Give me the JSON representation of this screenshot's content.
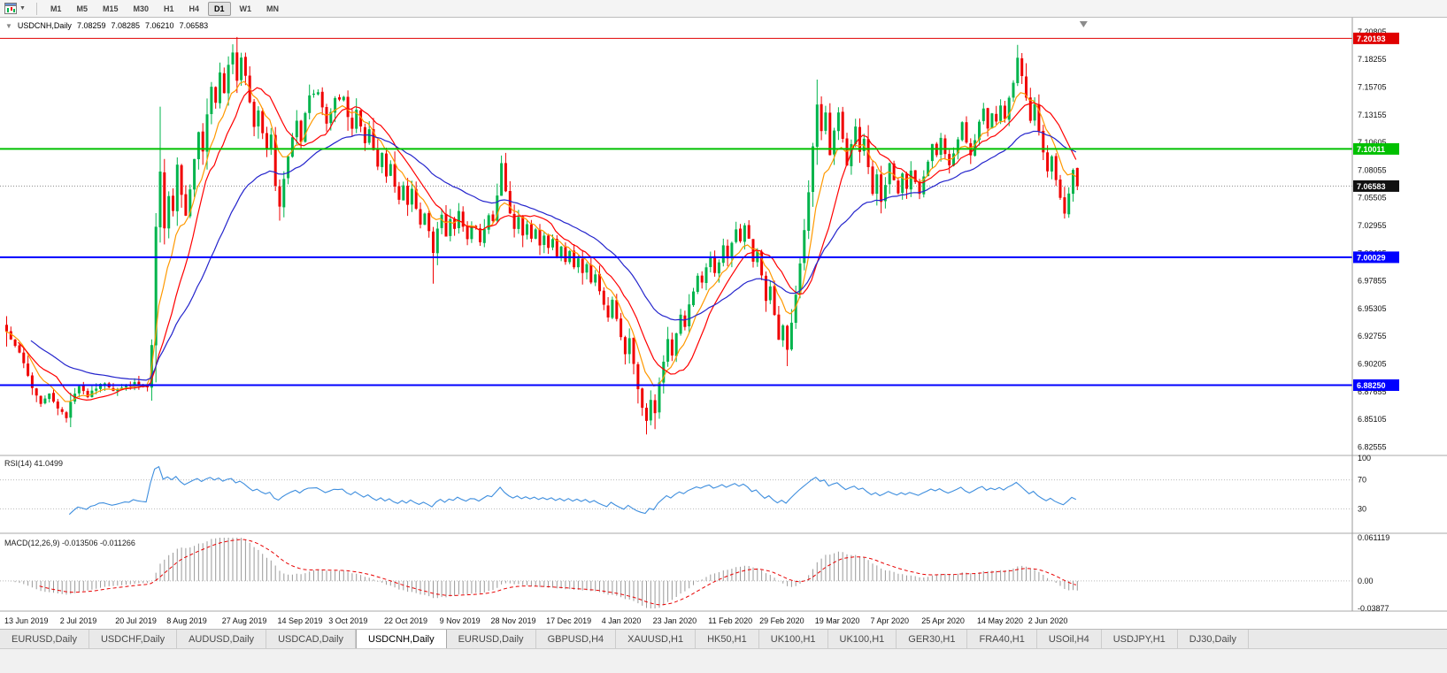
{
  "toolbar": {
    "timeframes": [
      "M1",
      "M5",
      "M15",
      "M30",
      "H1",
      "H4",
      "D1",
      "W1",
      "MN"
    ],
    "active_timeframe": "D1"
  },
  "chart": {
    "title": "USDCNH,Daily",
    "ohlc": {
      "open": "7.08259",
      "high": "7.08285",
      "low": "7.06210",
      "close": "7.06583"
    }
  },
  "indicators": {
    "rsi": {
      "label": "RSI(14) 41.0499",
      "scale_labels": [
        "100",
        "70",
        "30"
      ],
      "levels": [
        70,
        30
      ]
    },
    "macd": {
      "label": "MACD(12,26,9) -0.013506 -0.011266",
      "scale_labels": [
        "0.061119",
        "0.00",
        "-0.03877"
      ]
    }
  },
  "price_scale": {
    "labels": [
      "7.20805",
      "7.18255",
      "7.15705",
      "7.13155",
      "7.10605",
      "7.08055",
      "7.05505",
      "7.02955",
      "7.00405",
      "6.97855",
      "6.95305",
      "6.92755",
      "6.90205",
      "6.87655",
      "6.85105",
      "6.82555"
    ]
  },
  "x_axis": {
    "labels": [
      "13 Jun 2019",
      "2 Jul 2019",
      "20 Jul 2019",
      "8 Aug 2019",
      "27 Aug 2019",
      "14 Sep 2019",
      "3 Oct 2019",
      "22 Oct 2019",
      "9 Nov 2019",
      "28 Nov 2019",
      "17 Dec 2019",
      "4 Jan 2020",
      "23 Jan 2020",
      "11 Feb 2020",
      "29 Feb 2020",
      "19 Mar 2020",
      "7 Apr 2020",
      "25 Apr 2020",
      "14 May 2020",
      "2 Jun 2020"
    ],
    "candle_indices": [
      0,
      13,
      26,
      38,
      51,
      64,
      76,
      89,
      102,
      114,
      127,
      140,
      152,
      165,
      177,
      190,
      203,
      215,
      228,
      240
    ]
  },
  "tabs": [
    {
      "label": "EURUSD,Daily"
    },
    {
      "label": "USDCHF,Daily"
    },
    {
      "label": "AUDUSD,Daily"
    },
    {
      "label": "USDCAD,Daily"
    },
    {
      "label": "USDCNH,Daily",
      "active": true
    },
    {
      "label": "EURUSD,Daily"
    },
    {
      "label": "GBPUSD,H4"
    },
    {
      "label": "XAUUSD,H1"
    },
    {
      "label": "HK50,H1"
    },
    {
      "label": "UK100,H1"
    },
    {
      "label": "UK100,H1"
    },
    {
      "label": "GER30,H1"
    },
    {
      "label": "FRA40,H1"
    },
    {
      "label": "USOil,H4"
    },
    {
      "label": "USDJPY,H1"
    },
    {
      "label": "DJ30,Daily"
    }
  ],
  "chart_data": {
    "type": "candlestick",
    "symbol": "USDCNH",
    "timeframe": "Daily",
    "candle_count": 252,
    "ylim": [
      6.8185,
      7.221
    ],
    "last_candle": {
      "open": 7.08259,
      "high": 7.08285,
      "low": 7.0621,
      "close": 7.06583
    },
    "hlines": [
      {
        "price": 7.20193,
        "label": "7.20193",
        "color": "#e00000",
        "thickness": 1
      },
      {
        "price": 7.10011,
        "label": "7.10011",
        "color": "#00c000",
        "thickness": 2
      },
      {
        "price": 7.00029,
        "label": "7.00029",
        "color": "#0000ff",
        "thickness": 2
      },
      {
        "price": 6.8825,
        "label": "6.88250",
        "color": "#0000ff",
        "thickness": 2
      }
    ],
    "current_price": {
      "value": 7.06583,
      "label": "7.06583",
      "badge_color": "#111111"
    },
    "moving_averages": [
      {
        "period": 8,
        "method": "ema",
        "color": "#ff9900"
      },
      {
        "period": 13,
        "method": "sma",
        "color": "#ff0000"
      },
      {
        "period": 34,
        "method": "ema",
        "color": "#2424cc"
      }
    ],
    "rsi": {
      "period": 14,
      "current": 41.0499,
      "color": "#3e8ede",
      "levels": [
        70,
        30
      ]
    },
    "macd": {
      "fast": 12,
      "slow": 26,
      "signal": 9,
      "current_macd": -0.013506,
      "current_signal": -0.011266,
      "range": [
        -0.03877,
        0.061119
      ],
      "hist_color": "#9a9a9a",
      "signal_color": "#e80000"
    },
    "colors": {
      "up": "#00b44c",
      "down": "#f00000"
    },
    "close_waypoints": [
      [
        0,
        6.932
      ],
      [
        2,
        6.92
      ],
      [
        4,
        6.902
      ],
      [
        6,
        6.88
      ],
      [
        8,
        6.866
      ],
      [
        10,
        6.874
      ],
      [
        12,
        6.862
      ],
      [
        14,
        6.852
      ],
      [
        15,
        6.868
      ],
      [
        17,
        6.882
      ],
      [
        19,
        6.872
      ],
      [
        21,
        6.88
      ],
      [
        23,
        6.885
      ],
      [
        25,
        6.878
      ],
      [
        27,
        6.88
      ],
      [
        30,
        6.884
      ],
      [
        33,
        6.88
      ],
      [
        34,
        6.918
      ],
      [
        35,
        7.028
      ],
      [
        36,
        7.078
      ],
      [
        37,
        7.026
      ],
      [
        38,
        7.058
      ],
      [
        39,
        7.044
      ],
      [
        40,
        7.086
      ],
      [
        41,
        7.058
      ],
      [
        42,
        7.04
      ],
      [
        43,
        7.064
      ],
      [
        44,
        7.09
      ],
      [
        45,
        7.116
      ],
      [
        46,
        7.098
      ],
      [
        47,
        7.132
      ],
      [
        48,
        7.156
      ],
      [
        49,
        7.142
      ],
      [
        50,
        7.17
      ],
      [
        51,
        7.152
      ],
      [
        52,
        7.178
      ],
      [
        53,
        7.19
      ],
      [
        54,
        7.164
      ],
      [
        55,
        7.183
      ],
      [
        56,
        7.168
      ],
      [
        57,
        7.144
      ],
      [
        58,
        7.12
      ],
      [
        59,
        7.136
      ],
      [
        60,
        7.116
      ],
      [
        61,
        7.1
      ],
      [
        62,
        7.112
      ],
      [
        63,
        7.066
      ],
      [
        64,
        7.046
      ],
      [
        65,
        7.072
      ],
      [
        66,
        7.092
      ],
      [
        67,
        7.112
      ],
      [
        68,
        7.126
      ],
      [
        69,
        7.106
      ],
      [
        70,
        7.132
      ],
      [
        71,
        7.148
      ],
      [
        73,
        7.152
      ],
      [
        75,
        7.122
      ],
      [
        77,
        7.146
      ],
      [
        79,
        7.148
      ],
      [
        80,
        7.13
      ],
      [
        81,
        7.118
      ],
      [
        82,
        7.136
      ],
      [
        84,
        7.104
      ],
      [
        85,
        7.118
      ],
      [
        86,
        7.098
      ],
      [
        87,
        7.084
      ],
      [
        88,
        7.096
      ],
      [
        89,
        7.074
      ],
      [
        90,
        7.086
      ],
      [
        91,
        7.066
      ],
      [
        92,
        7.054
      ],
      [
        93,
        7.068
      ],
      [
        94,
        7.05
      ],
      [
        95,
        7.062
      ],
      [
        96,
        7.044
      ],
      [
        97,
        7.03
      ],
      [
        98,
        7.042
      ],
      [
        99,
        7.024
      ],
      [
        100,
        7.004
      ],
      [
        101,
        7.026
      ],
      [
        102,
        7.038
      ],
      [
        103,
        7.02
      ],
      [
        104,
        7.034
      ],
      [
        105,
        7.026
      ],
      [
        106,
        7.042
      ],
      [
        107,
        7.028
      ],
      [
        108,
        7.016
      ],
      [
        109,
        7.03
      ],
      [
        110,
        7.026
      ],
      [
        111,
        7.014
      ],
      [
        112,
        7.026
      ],
      [
        113,
        7.04
      ],
      [
        114,
        7.034
      ],
      [
        115,
        7.058
      ],
      [
        116,
        7.086
      ],
      [
        117,
        7.06
      ],
      [
        118,
        7.04
      ],
      [
        119,
        7.026
      ],
      [
        120,
        7.036
      ],
      [
        121,
        7.02
      ],
      [
        122,
        7.03
      ],
      [
        123,
        7.016
      ],
      [
        124,
        7.026
      ],
      [
        125,
        7.012
      ],
      [
        126,
        7.02
      ],
      [
        127,
        7.008
      ],
      [
        128,
        7.016
      ],
      [
        129,
        7.002
      ],
      [
        130,
        7.01
      ],
      [
        131,
        6.996
      ],
      [
        132,
        7.006
      ],
      [
        133,
        6.992
      ],
      [
        134,
        7.0
      ],
      [
        135,
        6.986
      ],
      [
        136,
        6.994
      ],
      [
        137,
        6.978
      ],
      [
        138,
        6.986
      ],
      [
        139,
        6.97
      ],
      [
        140,
        6.958
      ],
      [
        141,
        6.946
      ],
      [
        142,
        6.96
      ],
      [
        143,
        6.942
      ],
      [
        144,
        6.928
      ],
      [
        145,
        6.912
      ],
      [
        146,
        6.926
      ],
      [
        147,
        6.902
      ],
      [
        148,
        6.878
      ],
      [
        149,
        6.862
      ],
      [
        150,
        6.85
      ],
      [
        151,
        6.868
      ],
      [
        152,
        6.856
      ],
      [
        153,
        6.884
      ],
      [
        154,
        6.904
      ],
      [
        155,
        6.924
      ],
      [
        156,
        6.91
      ],
      [
        157,
        6.93
      ],
      [
        158,
        6.948
      ],
      [
        159,
        6.936
      ],
      [
        160,
        6.956
      ],
      [
        161,
        6.97
      ],
      [
        162,
        6.984
      ],
      [
        163,
        6.976
      ],
      [
        164,
        6.99
      ],
      [
        165,
        7.0
      ],
      [
        166,
        6.986
      ],
      [
        167,
        6.996
      ],
      [
        168,
        7.01
      ],
      [
        169,
        7.0
      ],
      [
        170,
        7.014
      ],
      [
        171,
        7.026
      ],
      [
        172,
        7.014
      ],
      [
        173,
        7.03
      ],
      [
        174,
        7.016
      ],
      [
        175,
        6.996
      ],
      [
        176,
        7.006
      ],
      [
        177,
        6.984
      ],
      [
        178,
        6.96
      ],
      [
        179,
        6.974
      ],
      [
        180,
        6.946
      ],
      [
        181,
        6.924
      ],
      [
        182,
        6.936
      ],
      [
        183,
        6.914
      ],
      [
        184,
        6.94
      ],
      [
        185,
        6.966
      ],
      [
        186,
        6.994
      ],
      [
        187,
        7.024
      ],
      [
        188,
        7.06
      ],
      [
        189,
        7.102
      ],
      [
        190,
        7.142
      ],
      [
        191,
        7.116
      ],
      [
        192,
        7.134
      ],
      [
        193,
        7.094
      ],
      [
        194,
        7.116
      ],
      [
        195,
        7.134
      ],
      [
        196,
        7.11
      ],
      [
        197,
        7.086
      ],
      [
        198,
        7.104
      ],
      [
        199,
        7.12
      ],
      [
        200,
        7.096
      ],
      [
        201,
        7.11
      ],
      [
        202,
        7.084
      ],
      [
        203,
        7.06
      ],
      [
        204,
        7.076
      ],
      [
        205,
        7.05
      ],
      [
        206,
        7.066
      ],
      [
        207,
        7.086
      ],
      [
        208,
        7.07
      ],
      [
        209,
        7.06
      ],
      [
        210,
        7.076
      ],
      [
        211,
        7.064
      ],
      [
        212,
        7.08
      ],
      [
        213,
        7.07
      ],
      [
        214,
        7.058
      ],
      [
        215,
        7.074
      ],
      [
        216,
        7.088
      ],
      [
        217,
        7.104
      ],
      [
        218,
        7.094
      ],
      [
        219,
        7.11
      ],
      [
        220,
        7.096
      ],
      [
        221,
        7.084
      ],
      [
        222,
        7.096
      ],
      [
        223,
        7.11
      ],
      [
        224,
        7.124
      ],
      [
        225,
        7.106
      ],
      [
        226,
        7.094
      ],
      [
        227,
        7.108
      ],
      [
        228,
        7.124
      ],
      [
        229,
        7.136
      ],
      [
        230,
        7.12
      ],
      [
        231,
        7.134
      ],
      [
        232,
        7.126
      ],
      [
        233,
        7.14
      ],
      [
        234,
        7.128
      ],
      [
        235,
        7.146
      ],
      [
        236,
        7.16
      ],
      [
        237,
        7.184
      ],
      [
        238,
        7.166
      ],
      [
        239,
        7.148
      ],
      [
        240,
        7.126
      ],
      [
        241,
        7.14
      ],
      [
        242,
        7.116
      ],
      [
        243,
        7.096
      ],
      [
        244,
        7.08
      ],
      [
        245,
        7.092
      ],
      [
        246,
        7.07
      ],
      [
        247,
        7.054
      ],
      [
        248,
        7.042
      ],
      [
        249,
        7.06
      ],
      [
        250,
        7.08
      ],
      [
        251,
        7.06583
      ]
    ],
    "key_candles": {
      "0": {
        "o": 6.938,
        "h": 6.946,
        "l": 6.918,
        "c": 6.932
      },
      "35": {
        "l": 6.885
      },
      "36": {
        "h": 7.139
      },
      "53": {
        "h": 7.1965
      },
      "64": {
        "l": 7.034
      },
      "100": {
        "l": 6.976
      },
      "116": {
        "h": 7.094
      },
      "150": {
        "l": 6.837
      },
      "152": {
        "l": 6.842
      },
      "183": {
        "l": 6.9
      },
      "190": {
        "h": 7.164
      },
      "237": {
        "h": 7.196
      },
      "248": {
        "l": 7.036
      },
      "251": {
        "o": 7.08259,
        "h": 7.08285,
        "l": 7.0621,
        "c": 7.06583
      }
    }
  }
}
